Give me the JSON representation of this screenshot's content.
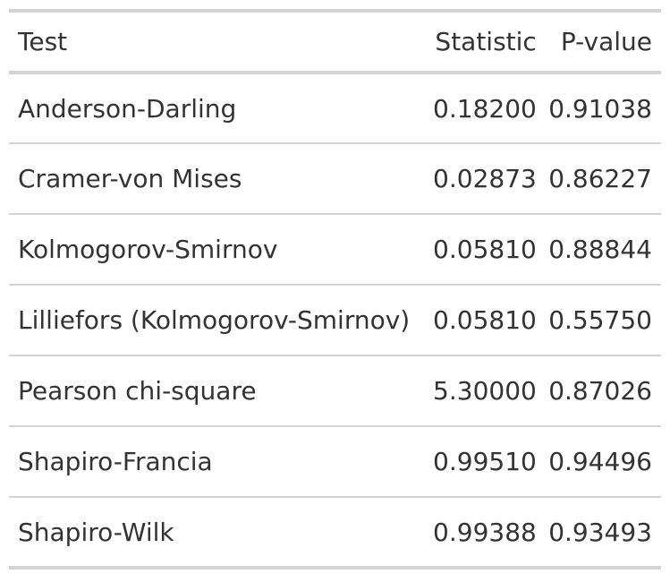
{
  "table": {
    "headers": {
      "test": "Test",
      "statistic": "Statistic",
      "pvalue": "P-value"
    },
    "rows": [
      {
        "test": "Anderson-Darling",
        "statistic": "0.18200",
        "pvalue": "0.91038"
      },
      {
        "test": "Cramer-von Mises",
        "statistic": "0.02873",
        "pvalue": "0.86227"
      },
      {
        "test": "Kolmogorov-Smirnov",
        "statistic": "0.05810",
        "pvalue": "0.88844"
      },
      {
        "test": "Lilliefors (Kolmogorov-Smirnov)",
        "statistic": "0.05810",
        "pvalue": "0.55750"
      },
      {
        "test": "Pearson chi-square",
        "statistic": "5.30000",
        "pvalue": "0.87026"
      },
      {
        "test": "Shapiro-Francia",
        "statistic": "0.99510",
        "pvalue": "0.94496"
      },
      {
        "test": "Shapiro-Wilk",
        "statistic": "0.99388",
        "pvalue": "0.93493"
      }
    ]
  }
}
